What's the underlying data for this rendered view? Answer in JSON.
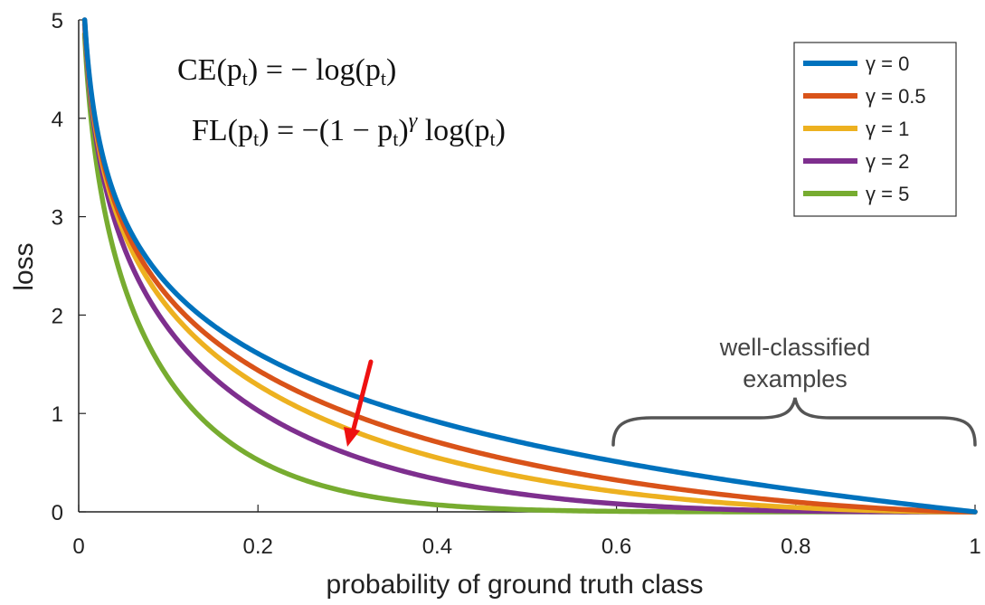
{
  "chart_data": {
    "type": "line",
    "title": "",
    "xlabel": "probability of ground truth class",
    "ylabel": "loss",
    "xlim": [
      0,
      1
    ],
    "ylim": [
      0,
      5
    ],
    "xticks": [
      "0",
      "0.2",
      "0.4",
      "0.6",
      "0.8",
      "1"
    ],
    "yticks": [
      "0",
      "1",
      "2",
      "3",
      "4",
      "5"
    ],
    "grid": false,
    "legend_position": "top-right",
    "x": [
      0.01,
      0.02,
      0.05,
      0.1,
      0.2,
      0.3,
      0.4,
      0.5,
      0.6,
      0.7,
      0.8,
      0.9,
      1.0
    ],
    "series": [
      {
        "name": "γ = 0",
        "gamma": 0,
        "color": "#0072BD",
        "values": [
          4.61,
          3.91,
          3.0,
          2.3,
          1.61,
          1.2,
          0.92,
          0.69,
          0.51,
          0.36,
          0.22,
          0.11,
          0.0
        ]
      },
      {
        "name": "γ = 0.5",
        "gamma": 0.5,
        "color": "#D95319",
        "values": [
          4.58,
          3.87,
          2.92,
          2.18,
          1.44,
          1.01,
          0.71,
          0.49,
          0.32,
          0.19,
          0.1,
          0.03,
          0.0
        ]
      },
      {
        "name": "γ = 1",
        "gamma": 1,
        "color": "#EDB120",
        "values": [
          4.56,
          3.83,
          2.85,
          2.07,
          1.29,
          0.84,
          0.55,
          0.35,
          0.2,
          0.11,
          0.04,
          0.01,
          0.0
        ]
      },
      {
        "name": "γ = 2",
        "gamma": 2,
        "color": "#7E2F8E",
        "values": [
          4.51,
          3.76,
          2.7,
          1.87,
          1.03,
          0.59,
          0.33,
          0.17,
          0.08,
          0.03,
          0.01,
          0.0,
          0.0
        ]
      },
      {
        "name": "γ = 5",
        "gamma": 5,
        "color": "#77AC30",
        "values": [
          4.38,
          3.54,
          2.32,
          1.36,
          0.53,
          0.2,
          0.07,
          0.02,
          0.01,
          0.0,
          0.0,
          0.0,
          0.0
        ]
      }
    ],
    "annotations": {
      "ce_formula": [
        "CE(p",
        "t",
        ") = − log(p",
        "t",
        ")"
      ],
      "fl_formula": [
        "FL(p",
        "t",
        ") = −(1 − p",
        "t",
        ")",
        "γ",
        " log(p",
        "t",
        ")"
      ],
      "bracket_label": [
        "well-classified",
        "examples"
      ],
      "arrow_color": "#EE1111"
    }
  }
}
